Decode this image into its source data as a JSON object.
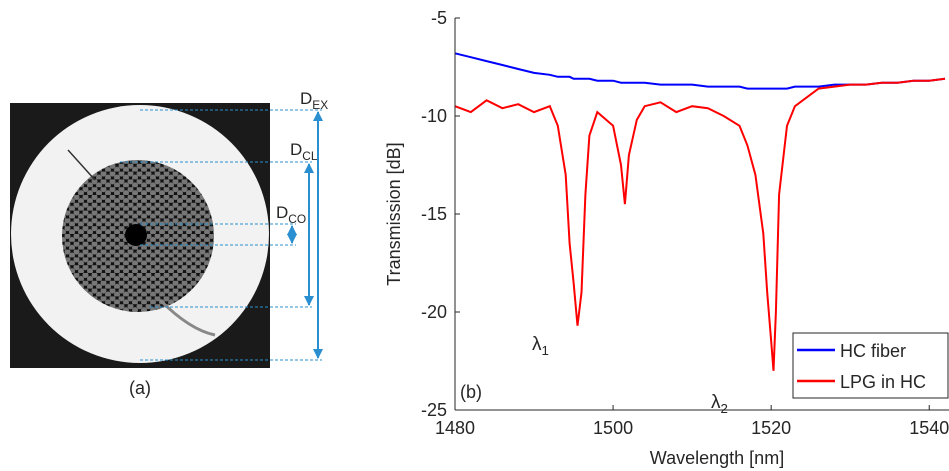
{
  "figure_a": {
    "panel_label": "(a)",
    "dimensions": [
      {
        "text": "D",
        "sub": "EX"
      },
      {
        "text": "D",
        "sub": "CL"
      },
      {
        "text": "D",
        "sub": "CO"
      }
    ]
  },
  "chart_data": {
    "type": "line",
    "panel_label": "(b)",
    "x_label": "Wavelength [nm]",
    "y_label": "Transmission [dB]",
    "x": [
      1480,
      1482,
      1484,
      1486,
      1488,
      1490,
      1492,
      1493,
      1494,
      1494.5,
      1495,
      1495.5,
      1496,
      1496.5,
      1497,
      1498,
      1500,
      1501,
      1501.5,
      1502,
      1503,
      1504,
      1506,
      1508,
      1510,
      1512,
      1514,
      1516,
      1517,
      1518,
      1519,
      1519.5,
      1520,
      1520.3,
      1520.6,
      1521,
      1522,
      1523,
      1524,
      1526,
      1528,
      1530,
      1532,
      1534,
      1536,
      1538,
      1540,
      1542
    ],
    "series": [
      {
        "name": "HC fiber",
        "color": "#0000ff",
        "values": [
          -6.8,
          -7.0,
          -7.2,
          -7.4,
          -7.6,
          -7.8,
          -7.9,
          -8.0,
          -8.0,
          -8.0,
          -8.1,
          -8.1,
          -8.1,
          -8.1,
          -8.1,
          -8.2,
          -8.2,
          -8.3,
          -8.3,
          -8.3,
          -8.3,
          -8.3,
          -8.4,
          -8.4,
          -8.4,
          -8.5,
          -8.5,
          -8.5,
          -8.6,
          -8.6,
          -8.6,
          -8.6,
          -8.6,
          -8.6,
          -8.6,
          -8.6,
          -8.6,
          -8.5,
          -8.5,
          -8.5,
          -8.4,
          -8.4,
          -8.4,
          -8.3,
          -8.3,
          -8.2,
          -8.2,
          -8.1
        ]
      },
      {
        "name": "LPG in HC",
        "color": "#ff0000",
        "values": [
          -9.5,
          -9.8,
          -9.2,
          -9.6,
          -9.4,
          -9.8,
          -9.5,
          -10.5,
          -13,
          -16.5,
          -18.5,
          -20.7,
          -19,
          -14,
          -11,
          -9.8,
          -10.5,
          -12.5,
          -14.5,
          -12,
          -10.2,
          -9.5,
          -9.3,
          -9.8,
          -9.5,
          -9.6,
          -10,
          -10.5,
          -11.5,
          -13,
          -16,
          -19,
          -21.5,
          -23,
          -20,
          -14,
          -10.5,
          -9.5,
          -9.2,
          -8.6,
          -8.5,
          -8.4,
          -8.4,
          -8.3,
          -8.3,
          -8.2,
          -8.2,
          -8.1
        ]
      }
    ],
    "annotations": [
      {
        "text": "λ",
        "sub": "1"
      },
      {
        "text": "λ",
        "sub": "2"
      }
    ],
    "xlim": [
      1480,
      1542.5
    ],
    "ylim": [
      -25,
      -5
    ],
    "xticks": [
      1480,
      1500,
      1520,
      1540
    ],
    "yticks": [
      -5,
      -10,
      -15,
      -20,
      -25
    ],
    "grid": false,
    "legend": "lower right"
  }
}
